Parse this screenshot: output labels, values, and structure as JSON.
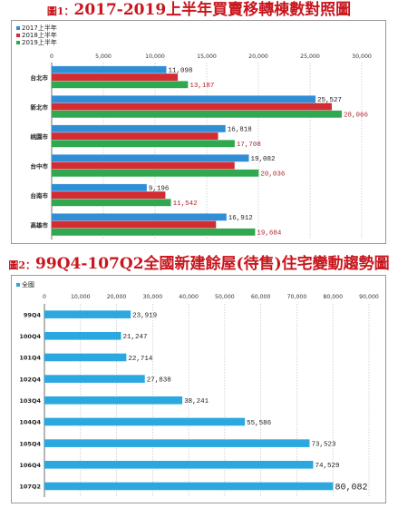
{
  "figure1": {
    "title_num": "圖1：",
    "title_text": "2017-2019上半年買賣移轉棟數對照圖"
  },
  "figure2": {
    "title_num": "圖2：",
    "title_text": "99Q4-107Q2全國新建餘屋(待售)住宅變動趨勢圖"
  },
  "colors": {
    "title_red": "#c8161d",
    "series_blue": "#2f8ed6",
    "series_red": "#d42c33",
    "series_green": "#2fa84f",
    "bar2_blue": "#2aa8df",
    "label_red": "#b0222a"
  },
  "chart_data": [
    {
      "type": "bar",
      "orientation": "horizontal",
      "categories": [
        "台北市",
        "新北市",
        "桃園市",
        "台中市",
        "台南市",
        "高雄市"
      ],
      "series": [
        {
          "name": "2017上半年",
          "values": [
            11098,
            25527,
            16818,
            19082,
            9196,
            16912
          ],
          "labels": [
            "11,098",
            "25,527",
            "16,818",
            "19,082",
            "9,196",
            "16,912"
          ]
        },
        {
          "name": "2018上半年",
          "values": [
            12200,
            27100,
            16100,
            17700,
            11000,
            15900
          ],
          "labels": []
        },
        {
          "name": "2019上半年",
          "values": [
            13187,
            28066,
            17708,
            20036,
            11542,
            19684
          ],
          "labels": [
            "13,187",
            "28,066",
            "17,708",
            "20,036",
            "11,542",
            "19,684"
          ]
        }
      ],
      "xlim": [
        0,
        30000
      ],
      "ticks": [
        "0",
        "5,000",
        "10,000",
        "15,000",
        "20,000",
        "25,000",
        "30,000"
      ],
      "grid": true,
      "legend": "top-left"
    },
    {
      "type": "bar",
      "orientation": "horizontal",
      "categories": [
        "99Q4",
        "100Q4",
        "101Q4",
        "102Q4",
        "103Q4",
        "104Q4",
        "105Q4",
        "106Q4",
        "107Q2"
      ],
      "series": [
        {
          "name": "全國",
          "values": [
            23919,
            21247,
            22714,
            27838,
            38241,
            55586,
            73523,
            74529,
            80082
          ],
          "labels": [
            "23,919",
            "21,247",
            "22,714",
            "27,838",
            "38,241",
            "55,586",
            "73,523",
            "74,529",
            "80,082"
          ]
        }
      ],
      "xlim": [
        0,
        90000
      ],
      "ticks": [
        "0",
        "10,000",
        "20,000",
        "30,000",
        "40,000",
        "50,000",
        "60,000",
        "70,000",
        "80,000",
        "90,000"
      ],
      "grid": true,
      "legend": "top-left"
    }
  ]
}
